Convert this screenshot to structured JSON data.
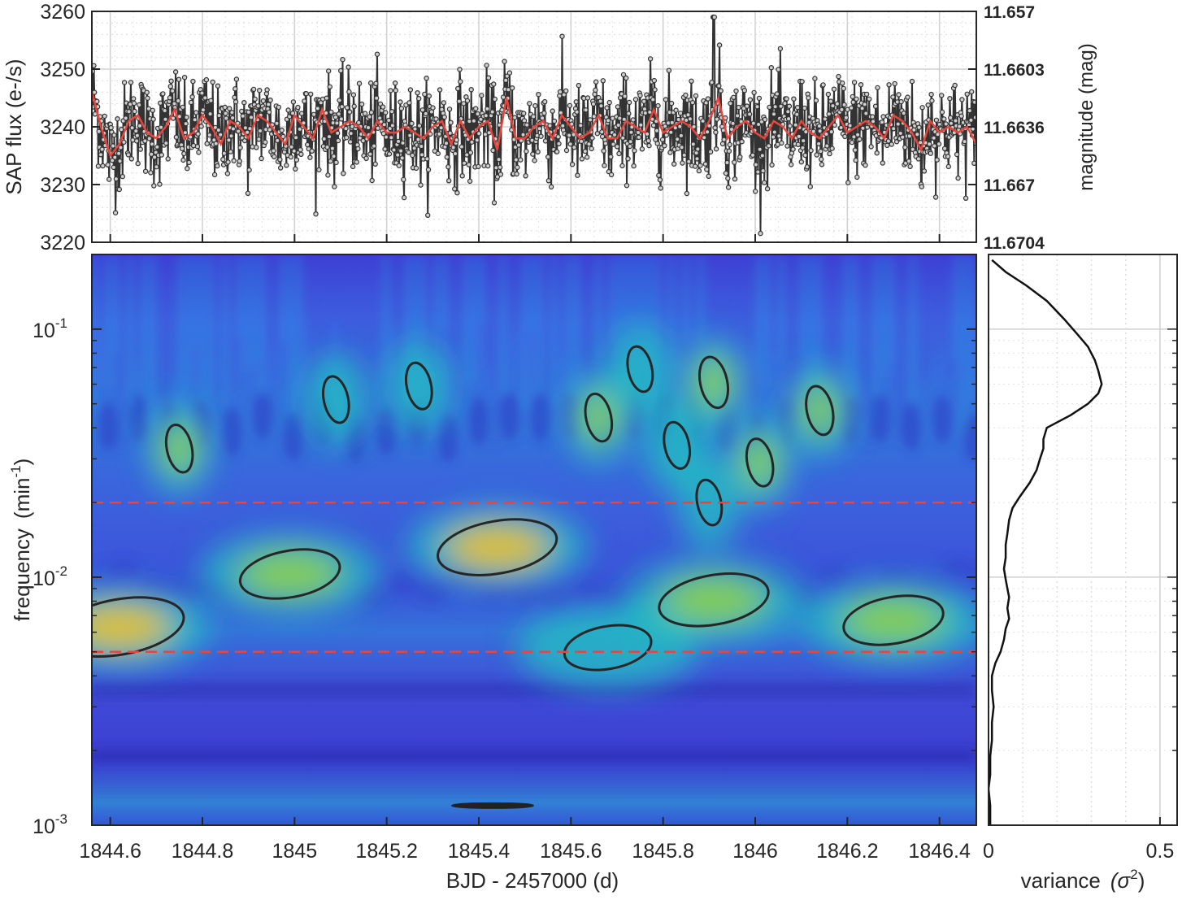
{
  "chart_data": [
    {
      "type": "line",
      "panel": "light-curve",
      "ylabel": "SAP flux (e-/s)",
      "ylabel_right": "magnitude (mag)",
      "xlim": [
        1844.56,
        1846.48
      ],
      "ylim": [
        3220,
        3260
      ],
      "yticks": [
        3220,
        3230,
        3240,
        3250,
        3260
      ],
      "yticks_right": [
        "11.657",
        "11.6603",
        "11.6636",
        "11.667",
        "11.6704"
      ],
      "grid": true,
      "series": [
        {
          "kind": "raw",
          "color": "#333333",
          "marker": "circle",
          "mean": 3240,
          "sd": 4.2
        },
        {
          "kind": "smoothed",
          "color": "#e8453c",
          "x": [
            1844.56,
            1844.58,
            1844.6,
            1844.62,
            1844.64,
            1844.66,
            1844.68,
            1844.7,
            1844.72,
            1844.74,
            1844.76,
            1844.78,
            1844.8,
            1844.82,
            1844.84,
            1844.86,
            1844.88,
            1844.9,
            1844.92,
            1844.94,
            1844.96,
            1844.98,
            1845.0,
            1845.02,
            1845.04,
            1845.06,
            1845.08,
            1845.1,
            1845.12,
            1845.14,
            1845.16,
            1845.18,
            1845.2,
            1845.22,
            1845.24,
            1845.26,
            1845.28,
            1845.3,
            1845.32,
            1845.34,
            1845.36,
            1845.38,
            1845.4,
            1845.42,
            1845.44,
            1845.46,
            1845.48,
            1845.5,
            1845.52,
            1845.54,
            1845.56,
            1845.58,
            1845.6,
            1845.62,
            1845.64,
            1845.66,
            1845.68,
            1845.7,
            1845.72,
            1845.74,
            1845.76,
            1845.78,
            1845.8,
            1845.82,
            1845.84,
            1845.86,
            1845.88,
            1845.9,
            1845.92,
            1845.94,
            1845.96,
            1845.98,
            1846.0,
            1846.02,
            1846.04,
            1846.06,
            1846.08,
            1846.1,
            1846.12,
            1846.14,
            1846.16,
            1846.18,
            1846.2,
            1846.22,
            1846.24,
            1846.26,
            1846.28,
            1846.3,
            1846.32,
            1846.34,
            1846.36,
            1846.38,
            1846.4,
            1846.42,
            1846.44,
            1846.46,
            1846.48
          ],
          "y": [
            3246,
            3240,
            3235,
            3237,
            3241,
            3242,
            3239,
            3238,
            3240,
            3243,
            3238,
            3239,
            3242,
            3240,
            3237,
            3241,
            3240,
            3238,
            3242,
            3241,
            3239,
            3237,
            3242,
            3240,
            3238,
            3243,
            3239,
            3240,
            3241,
            3240,
            3238,
            3241,
            3239,
            3239,
            3240,
            3239,
            3238,
            3240,
            3241,
            3237,
            3241,
            3238,
            3240,
            3241,
            3236,
            3245,
            3238,
            3238,
            3240,
            3241,
            3238,
            3242,
            3240,
            3238,
            3239,
            3242,
            3238,
            3238,
            3241,
            3240,
            3239,
            3243,
            3239,
            3240,
            3241,
            3240,
            3238,
            3241,
            3245,
            3238,
            3240,
            3241,
            3239,
            3238,
            3241,
            3240,
            3238,
            3241,
            3239,
            3238,
            3240,
            3242,
            3239,
            3240,
            3241,
            3240,
            3238,
            3242,
            3241,
            3239,
            3236,
            3241,
            3239,
            3240,
            3239,
            3240,
            3237
          ]
        }
      ]
    },
    {
      "type": "heatmap",
      "panel": "wavelet-spectrum",
      "xlabel": "BJD - 2457000 (d)",
      "ylabel": "frequency",
      "ylabel_unit": "(min",
      "ylabel_unit_sup": "-1",
      "ylabel_unit_close": ")",
      "xlim": [
        1844.56,
        1846.48
      ],
      "ylim": [
        0.001,
        0.2
      ],
      "yscale": "log",
      "xticks": [
        1844.6,
        1844.8,
        1845,
        1845.2,
        1845.4,
        1845.6,
        1845.8,
        1846,
        1846.2,
        1846.4
      ],
      "xticklabels": [
        "1844.6",
        "1844.8",
        "1845",
        "1845.2",
        "1845.4",
        "1845.6",
        "1845.8",
        "1846",
        "1846.2",
        "1846.4"
      ],
      "yticks": [
        0.001,
        0.01,
        0.1
      ],
      "yticklabels": [
        {
          "base": "10",
          "exp": "-3"
        },
        {
          "base": "10",
          "exp": "-2"
        },
        {
          "base": "10",
          "exp": "-1"
        }
      ],
      "reference_lines": [
        {
          "frequency": 0.02,
          "color": "#e8453c",
          "style": "dashed"
        },
        {
          "frequency": 0.005,
          "color": "#e8453c",
          "style": "dashed"
        }
      ],
      "significance_contour_color": "#262626",
      "hotspots": [
        {
          "x": 1844.62,
          "f": 0.0063,
          "strength": 1.0
        },
        {
          "x": 1845.44,
          "f": 0.0132,
          "strength": 0.85
        },
        {
          "x": 1845.91,
          "f": 0.0081,
          "strength": 0.7
        },
        {
          "x": 1844.99,
          "f": 0.0103,
          "strength": 0.55
        },
        {
          "x": 1846.3,
          "f": 0.0067,
          "strength": 0.55
        },
        {
          "x": 1845.91,
          "f": 0.061,
          "strength": 0.7
        },
        {
          "x": 1846.14,
          "f": 0.047,
          "strength": 0.6
        },
        {
          "x": 1844.75,
          "f": 0.033,
          "strength": 0.55
        },
        {
          "x": 1845.66,
          "f": 0.044,
          "strength": 0.55
        },
        {
          "x": 1846.01,
          "f": 0.029,
          "strength": 0.55
        },
        {
          "x": 1845.83,
          "f": 0.034,
          "strength": 0.5
        },
        {
          "x": 1845.09,
          "f": 0.052,
          "strength": 0.5
        },
        {
          "x": 1845.27,
          "f": 0.059,
          "strength": 0.5
        },
        {
          "x": 1845.75,
          "f": 0.069,
          "strength": 0.45
        },
        {
          "x": 1845.9,
          "f": 0.02,
          "strength": 0.45
        },
        {
          "x": 1845.68,
          "f": 0.0052,
          "strength": 0.35
        }
      ]
    },
    {
      "type": "line",
      "panel": "global-wavelet",
      "xlabel": "variance",
      "xlabel_sym": "(σ",
      "xlabel_sup": "2",
      "xlabel_close": ")",
      "xlim": [
        0,
        0.55
      ],
      "xticks": [
        0,
        0.5
      ],
      "xticklabels": [
        "0",
        "0.5"
      ],
      "yscale": "log",
      "ylim": [
        0.001,
        0.2
      ],
      "series": [
        {
          "color": "#111111",
          "frequency": [
            0.19,
            0.17,
            0.15,
            0.13,
            0.11,
            0.095,
            0.085,
            0.075,
            0.068,
            0.06,
            0.055,
            0.05,
            0.045,
            0.04,
            0.036,
            0.033,
            0.03,
            0.027,
            0.024,
            0.021,
            0.019,
            0.017,
            0.015,
            0.0135,
            0.012,
            0.0108,
            0.0098,
            0.009,
            0.0083,
            0.0075,
            0.0068,
            0.0062,
            0.0056,
            0.005,
            0.0045,
            0.004,
            0.0035,
            0.003,
            0.0026,
            0.0022,
            0.0019,
            0.0016,
            0.0014,
            0.0012,
            0.0011,
            0.001
          ],
          "variance": [
            0.01,
            0.05,
            0.11,
            0.17,
            0.22,
            0.26,
            0.29,
            0.31,
            0.32,
            0.33,
            0.32,
            0.29,
            0.24,
            0.17,
            0.16,
            0.16,
            0.15,
            0.14,
            0.12,
            0.09,
            0.07,
            0.06,
            0.055,
            0.05,
            0.05,
            0.045,
            0.05,
            0.055,
            0.06,
            0.055,
            0.06,
            0.05,
            0.045,
            0.035,
            0.02,
            0.01,
            0.01,
            0.015,
            0.01,
            0.01,
            0.005,
            0.005,
            0.0,
            0.005,
            0.005,
            0.005
          ]
        }
      ]
    }
  ]
}
